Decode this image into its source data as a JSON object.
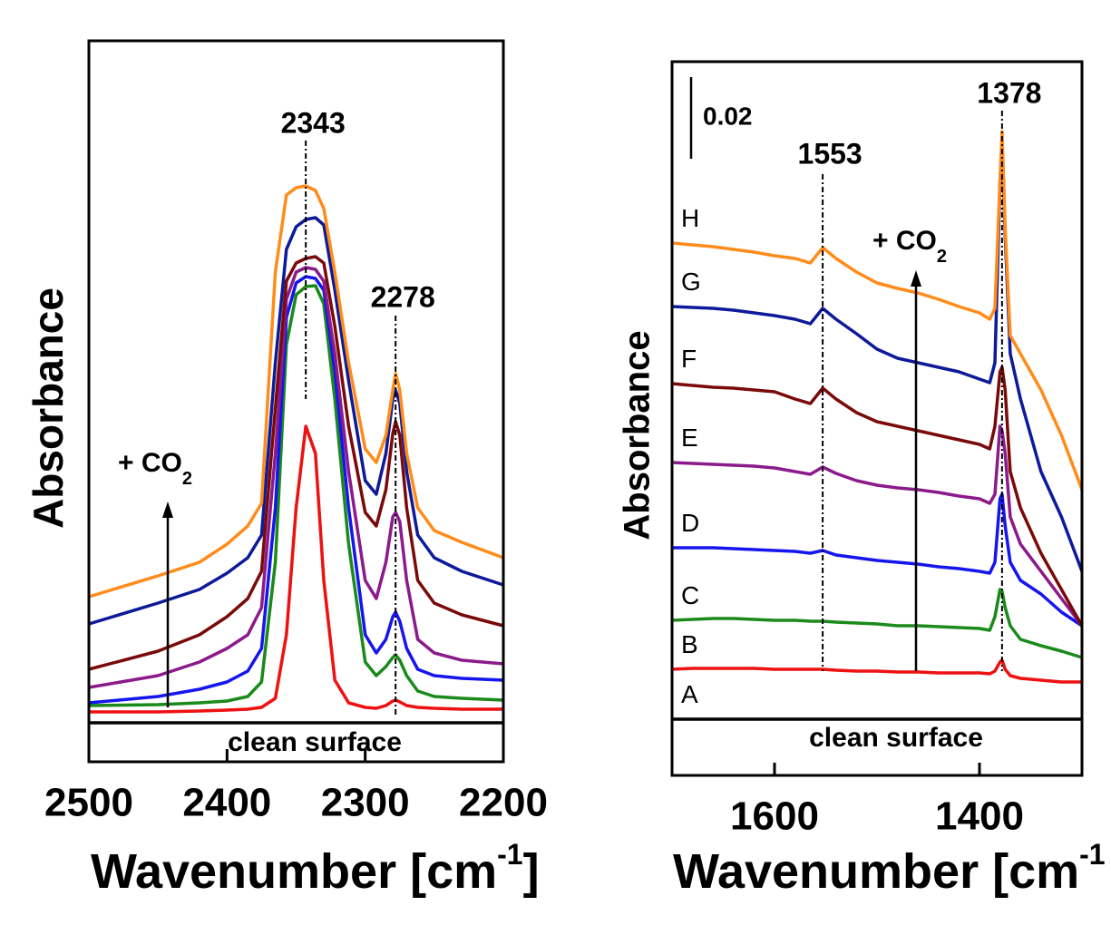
{
  "chart_data": [
    {
      "type": "line",
      "x_label": {
        "text": "Wavenumber [cm",
        "sup": "-1",
        "end": "]"
      },
      "y_label": "Absorbance",
      "xlim": [
        2500,
        2200
      ],
      "xticks": [
        2500,
        2400,
        2300,
        2200
      ],
      "ylim": [
        0,
        795
      ],
      "x": [
        2500,
        2450,
        2420,
        2400,
        2385,
        2375,
        2365,
        2357,
        2350,
        2343,
        2336,
        2330,
        2322,
        2312,
        2300,
        2292,
        2285,
        2280,
        2278,
        2275,
        2270,
        2262,
        2250,
        2230,
        2200
      ],
      "series": [
        {
          "color": "#000000",
          "values": [
            43,
            43,
            43,
            43,
            43,
            43,
            43,
            43,
            43,
            43,
            43,
            43,
            43,
            43,
            43,
            43,
            43,
            43,
            43,
            43,
            43,
            43,
            43,
            43,
            43
          ]
        },
        {
          "color": "#ee1111",
          "values": [
            55,
            55,
            56,
            57,
            58,
            60,
            70,
            140,
            280,
            370,
            340,
            200,
            90,
            65,
            60,
            59,
            62,
            67,
            68,
            66,
            62,
            60,
            59,
            58,
            58
          ]
        },
        {
          "color": "#1a8a1a",
          "values": [
            62,
            63,
            65,
            67,
            72,
            88,
            220,
            460,
            515,
            524,
            525,
            505,
            400,
            240,
            110,
            95,
            105,
            115,
            118,
            112,
            95,
            78,
            72,
            70,
            68
          ]
        },
        {
          "color": "#1515ee",
          "values": [
            65,
            72,
            80,
            88,
            100,
            125,
            280,
            490,
            528,
            535,
            533,
            520,
            430,
            280,
            140,
            120,
            135,
            160,
            165,
            155,
            125,
            102,
            95,
            92,
            90
          ]
        },
        {
          "color": "#8b1a8b",
          "values": [
            82,
            95,
            110,
            125,
            140,
            170,
            340,
            510,
            540,
            545,
            543,
            530,
            450,
            320,
            200,
            180,
            220,
            270,
            275,
            265,
            200,
            135,
            120,
            112,
            108
          ]
        },
        {
          "color": "#7a0a0a",
          "values": [
            102,
            122,
            140,
            160,
            180,
            210,
            390,
            530,
            550,
            555,
            557,
            550,
            480,
            370,
            275,
            260,
            300,
            362,
            375,
            360,
            280,
            200,
            175,
            162,
            150
          ]
        },
        {
          "color": "#0d1a99",
          "values": [
            152,
            175,
            190,
            208,
            225,
            250,
            440,
            565,
            590,
            598,
            600,
            592,
            520,
            420,
            310,
            295,
            340,
            400,
            410,
            395,
            320,
            250,
            225,
            210,
            195
          ]
        },
        {
          "color": "#ff8c1a",
          "values": [
            182,
            205,
            220,
            240,
            260,
            285,
            540,
            625,
            633,
            635,
            630,
            610,
            540,
            440,
            345,
            330,
            360,
            410,
            428,
            410,
            340,
            280,
            255,
            242,
            225
          ]
        }
      ],
      "peaks": [
        2343,
        2278
      ],
      "arrow_label": {
        "text": "+ CO",
        "sub": "2"
      },
      "surface_label": "clean surface"
    },
    {
      "type": "line",
      "x_label": {
        "text": "Wavenumber [cm",
        "sup": "-1"
      },
      "y_label": "Absorbance",
      "xlim": [
        1700,
        1300
      ],
      "xticks": [
        1600,
        1400
      ],
      "ylim": [
        0,
        787
      ],
      "x": [
        1700,
        1680,
        1660,
        1640,
        1620,
        1600,
        1580,
        1565,
        1553,
        1540,
        1520,
        1500,
        1480,
        1460,
        1440,
        1420,
        1400,
        1390,
        1385,
        1380,
        1378,
        1375,
        1370,
        1360,
        1340,
        1320,
        1300
      ],
      "series": [
        {
          "name": "A",
          "color": "#000000",
          "values": [
            62,
            62,
            62,
            62,
            62,
            62,
            62,
            62,
            62,
            62,
            62,
            62,
            62,
            62,
            62,
            62,
            62,
            62,
            62,
            62,
            62,
            62,
            62,
            62,
            62,
            62,
            62
          ]
        },
        {
          "name": "B",
          "color": "#ee1111",
          "values": [
            117,
            118,
            118,
            118,
            118,
            117,
            117,
            117,
            117,
            116,
            115,
            115,
            114,
            114,
            113,
            113,
            113,
            112,
            115,
            125,
            127,
            117,
            110,
            107,
            105,
            103,
            103
          ]
        },
        {
          "name": "C",
          "color": "#1a8a1a",
          "values": [
            171,
            172,
            173,
            173,
            172,
            171,
            171,
            170,
            170,
            169,
            168,
            167,
            165,
            165,
            164,
            163,
            162,
            160,
            175,
            205,
            203,
            185,
            165,
            150,
            143,
            137,
            130
          ]
        },
        {
          "name": "D",
          "color": "#1515ee",
          "values": [
            251,
            251,
            251,
            250,
            249,
            248,
            247,
            245,
            248,
            243,
            240,
            237,
            235,
            233,
            230,
            228,
            225,
            223,
            235,
            305,
            310,
            275,
            235,
            215,
            200,
            180,
            165
          ]
        },
        {
          "name": "E",
          "color": "#8b1a8b",
          "values": [
            345,
            344,
            343,
            342,
            341,
            339,
            335,
            332,
            340,
            333,
            325,
            320,
            317,
            315,
            312,
            308,
            305,
            300,
            310,
            385,
            380,
            355,
            285,
            255,
            225,
            195,
            165
          ]
        },
        {
          "name": "F",
          "color": "#7a0a0a",
          "values": [
            432,
            430,
            428,
            427,
            425,
            423,
            415,
            410,
            427,
            415,
            400,
            390,
            385,
            380,
            375,
            370,
            365,
            360,
            385,
            445,
            450,
            425,
            335,
            295,
            245,
            205,
            165
          ]
        },
        {
          "name": "G",
          "color": "#0d1a99",
          "values": [
            517,
            516,
            515,
            513,
            510,
            507,
            503,
            498,
            515,
            503,
            487,
            470,
            460,
            455,
            450,
            445,
            437,
            433,
            455,
            655,
            695,
            595,
            465,
            415,
            335,
            285,
            225
          ]
        },
        {
          "name": "H",
          "color": "#ff8c1a",
          "values": [
            587,
            585,
            583,
            580,
            577,
            573,
            570,
            565,
            582,
            570,
            555,
            543,
            537,
            532,
            525,
            517,
            510,
            503,
            515,
            655,
            710,
            605,
            485,
            465,
            425,
            375,
            315
          ]
        }
      ],
      "peaks": [
        1553,
        1378
      ],
      "arrow_label": {
        "text": "+ CO",
        "sub": "2"
      },
      "surface_label": "clean surface",
      "scale_bar": 0.02
    }
  ]
}
